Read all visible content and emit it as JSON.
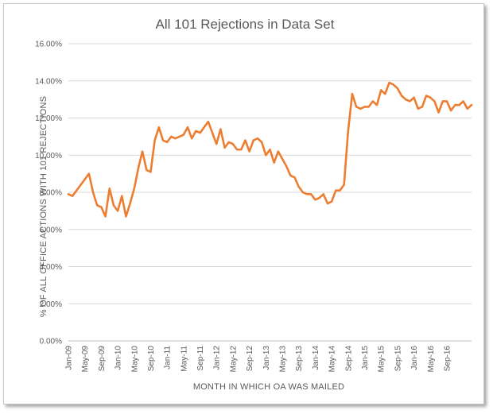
{
  "chart_data": {
    "type": "line",
    "title": "All 101 Rejections  in Data Set",
    "xlabel": "MONTH IN WHICH OA WAS MAILED",
    "ylabel": "% OF ALL OFFICE ACTIONS WITH 101 REJECTIONS",
    "ylim": [
      0,
      16
    ],
    "y_ticks": [
      0,
      2,
      4,
      6,
      8,
      10,
      12,
      14,
      16
    ],
    "y_tick_labels": [
      "0.00%",
      "2.00%",
      "4.00%",
      "6.00%",
      "8.00%",
      "10.00%",
      "12.00%",
      "14.00%",
      "16.00%"
    ],
    "x_tick_labels": [
      "Jan-09",
      "May-09",
      "Sep-09",
      "Jan-10",
      "May-10",
      "Sep-10",
      "Jan-11",
      "May-11",
      "Sep-11",
      "Jan-12",
      "May-12",
      "Sep-12",
      "Jan-13",
      "May-13",
      "Sep-13",
      "Jan-14",
      "May-14",
      "Sep-14",
      "Jan-15",
      "May-15",
      "Sep-15",
      "Jan-16",
      "May-16",
      "Sep-16"
    ],
    "grid": true,
    "legend": "none",
    "color": "#ED7D31",
    "series": [
      {
        "values": [
          7.9,
          7.8,
          8.1,
          8.4,
          8.7,
          9.0,
          8.0,
          7.3,
          7.2,
          6.7,
          8.2,
          7.3,
          7.0,
          7.8,
          6.7,
          7.4,
          8.2,
          9.3,
          10.2,
          9.2,
          9.1,
          10.8,
          11.5,
          10.8,
          10.7,
          11.0,
          10.9,
          11.0,
          11.1,
          11.5,
          10.9,
          11.3,
          11.2,
          11.5,
          11.8,
          11.2,
          10.6,
          11.4,
          10.4,
          10.7,
          10.6,
          10.3,
          10.3,
          10.8,
          10.2,
          10.8,
          10.9,
          10.7,
          10.0,
          10.3,
          9.6,
          10.2,
          9.8,
          9.4,
          8.9,
          8.8,
          8.3,
          8.0,
          7.9,
          7.9,
          7.6,
          7.7,
          7.9,
          7.4,
          7.5,
          8.1,
          8.1,
          8.4,
          11.3,
          13.3,
          12.6,
          12.5,
          12.6,
          12.6,
          12.9,
          12.7,
          13.5,
          13.3,
          13.9,
          13.8,
          13.6,
          13.2,
          13.0,
          12.9,
          13.1,
          12.5,
          12.6,
          13.2,
          13.1,
          12.9,
          12.3,
          12.9,
          12.9,
          12.4,
          12.7,
          12.7,
          12.9,
          12.5,
          12.7
        ]
      }
    ]
  }
}
